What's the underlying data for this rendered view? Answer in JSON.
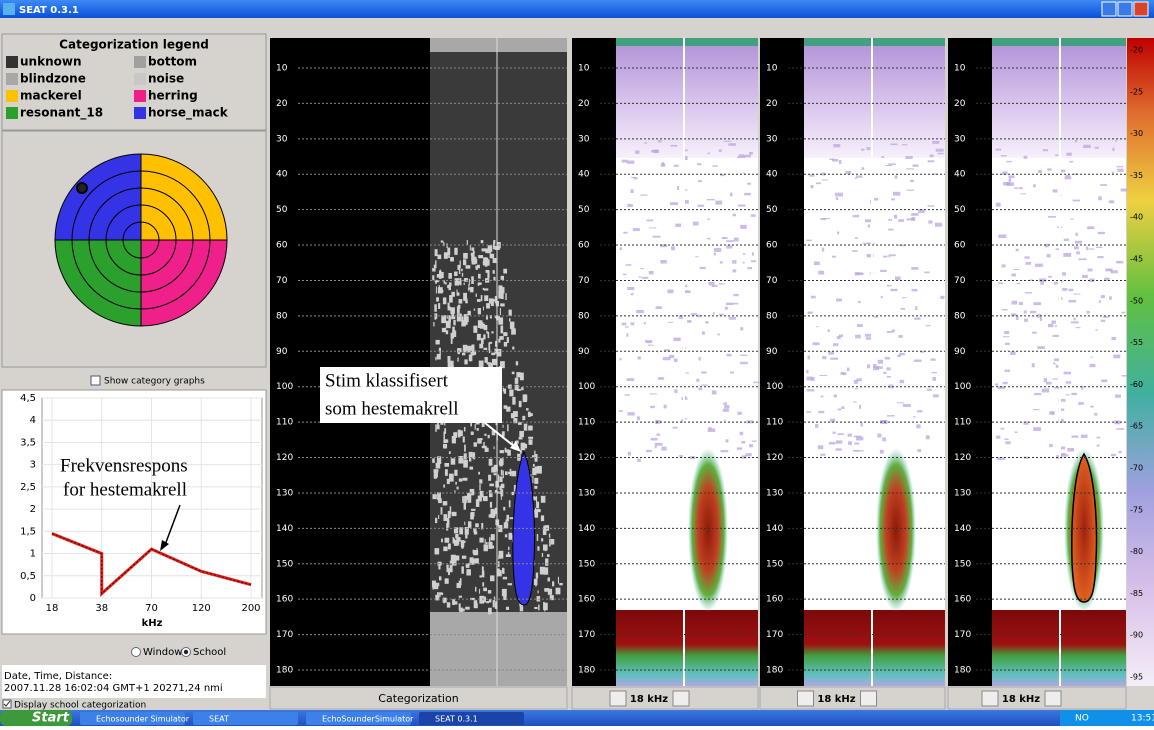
{
  "window_title": "SEAT 0.3.1",
  "legend": {
    "title": "Categorization legend",
    "items": [
      {
        "name": "unknown",
        "color": "#333333"
      },
      {
        "name": "bottom",
        "color": "#a0a0a0"
      },
      {
        "name": "blindzone",
        "color": "#a8a8a8"
      },
      {
        "name": "noise",
        "color": "#c8c8c8"
      },
      {
        "name": "mackerel",
        "color": "#ffc000"
      },
      {
        "name": "herring",
        "color": "#f0208a"
      },
      {
        "name": "resonant_18",
        "color": "#2ca02c"
      },
      {
        "name": "horse_mack",
        "color": "#3434e6"
      }
    ]
  },
  "show_graphs_label": "Show category graphs",
  "chart_data": {
    "type": "line",
    "x": [
      18,
      38,
      38,
      70,
      120,
      200
    ],
    "values": [
      1.45,
      1.0,
      0.1,
      1.1,
      0.6,
      0.3
    ],
    "color": "#e0201a",
    "xlim": [
      18,
      200
    ],
    "xticks": [
      18,
      38,
      70,
      120,
      200
    ],
    "xlabel": "kHz",
    "ylim": [
      0,
      4.5
    ],
    "yticks": [
      0,
      {
        "value": 0.5,
        "label": "0,5"
      },
      1,
      {
        "value": 1.5,
        "label": "1,5"
      },
      2,
      {
        "value": 2.5,
        "label": "2,5"
      },
      3,
      {
        "value": 3.5,
        "label": "3,5"
      },
      4,
      {
        "value": 4.5,
        "label": "4,5"
      }
    ],
    "grid": true,
    "annotation": [
      "Frekvensrespons",
      "for hestemakrell"
    ]
  },
  "mode": {
    "options": [
      "Window",
      "School"
    ],
    "selected": 1
  },
  "info": {
    "label": "Date, Time, Distance:",
    "value": "2007.11.28  16:02:04 GMT+1  20271,24 nmi"
  },
  "display_checkbox": "Display school categorization",
  "echogram": {
    "depth_ticks": [
      10,
      20,
      30,
      40,
      50,
      60,
      70,
      80,
      90,
      100,
      110,
      120,
      130,
      140,
      150,
      160,
      170,
      180
    ],
    "panels": [
      "Categorization",
      "18 kHz",
      "18 kHz",
      "18 kHz"
    ],
    "annotation": [
      "Stim klassifisert",
      "som hestemakrell"
    ],
    "scale": [
      -20,
      -25,
      -30,
      -35,
      -40,
      -45,
      -50,
      -55,
      -60,
      -65,
      -70,
      -75,
      -80,
      -85,
      -90,
      -95
    ]
  },
  "taskbar": {
    "start": "Start",
    "items": [
      "Echosounder Simulator",
      "SEAT",
      "EchoSounderSimulator",
      "SEAT 0.3.1"
    ],
    "language": "NO",
    "clock": "13:51"
  }
}
